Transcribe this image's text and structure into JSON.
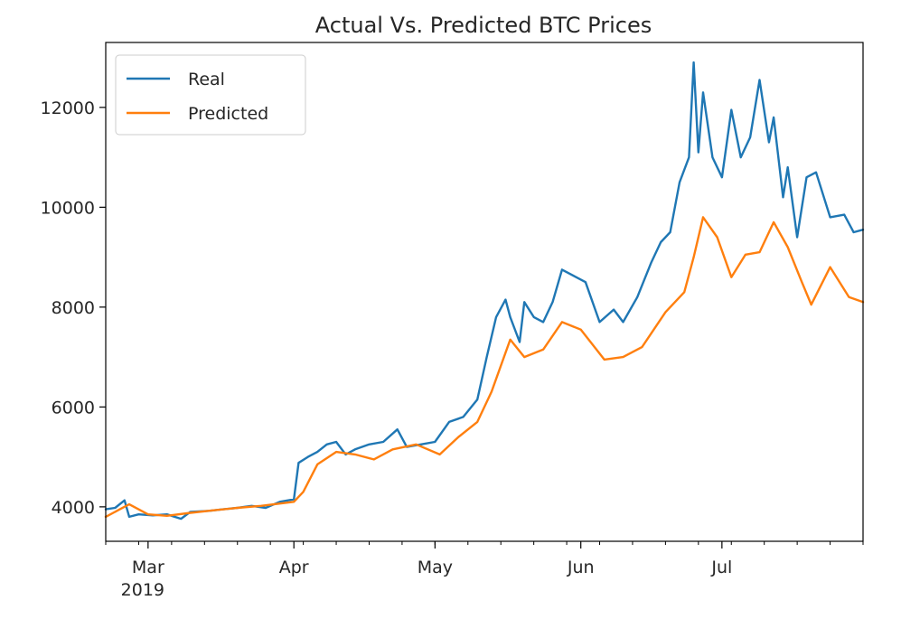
{
  "chart_data": {
    "type": "line",
    "title": "Actual Vs. Predicted BTC Prices",
    "xlabel": "",
    "ylabel": "",
    "x_range": [
      "2019-02-20",
      "2019-07-31"
    ],
    "ylim": [
      3310,
      13300
    ],
    "yticks": [
      4000,
      6000,
      8000,
      10000,
      12000
    ],
    "xticks": [
      {
        "date": "2019-03-01",
        "label": "Mar",
        "sublabel": "2019"
      },
      {
        "date": "2019-04-01",
        "label": "Apr"
      },
      {
        "date": "2019-05-01",
        "label": "May"
      },
      {
        "date": "2019-06-01",
        "label": "Jun"
      },
      {
        "date": "2019-07-01",
        "label": "Jul"
      }
    ],
    "grid": false,
    "legend_position": "upper-left",
    "series": [
      {
        "name": "Real",
        "color": "#1f77b4",
        "points": [
          [
            "2019-02-20",
            3950
          ],
          [
            "2019-02-22",
            3980
          ],
          [
            "2019-02-24",
            4130
          ],
          [
            "2019-02-25",
            3800
          ],
          [
            "2019-02-27",
            3850
          ],
          [
            "2019-03-02",
            3830
          ],
          [
            "2019-03-05",
            3850
          ],
          [
            "2019-03-08",
            3760
          ],
          [
            "2019-03-10",
            3900
          ],
          [
            "2019-03-14",
            3920
          ],
          [
            "2019-03-17",
            3950
          ],
          [
            "2019-03-20",
            3980
          ],
          [
            "2019-03-23",
            4020
          ],
          [
            "2019-03-26",
            3980
          ],
          [
            "2019-03-29",
            4100
          ],
          [
            "2019-04-01",
            4150
          ],
          [
            "2019-04-02",
            4880
          ],
          [
            "2019-04-04",
            5000
          ],
          [
            "2019-04-06",
            5100
          ],
          [
            "2019-04-08",
            5250
          ],
          [
            "2019-04-10",
            5300
          ],
          [
            "2019-04-12",
            5050
          ],
          [
            "2019-04-14",
            5150
          ],
          [
            "2019-04-17",
            5250
          ],
          [
            "2019-04-20",
            5300
          ],
          [
            "2019-04-23",
            5550
          ],
          [
            "2019-04-25",
            5200
          ],
          [
            "2019-04-28",
            5250
          ],
          [
            "2019-05-01",
            5300
          ],
          [
            "2019-05-04",
            5700
          ],
          [
            "2019-05-07",
            5800
          ],
          [
            "2019-05-10",
            6150
          ],
          [
            "2019-05-12",
            7000
          ],
          [
            "2019-05-14",
            7800
          ],
          [
            "2019-05-16",
            8150
          ],
          [
            "2019-05-17",
            7800
          ],
          [
            "2019-05-19",
            7300
          ],
          [
            "2019-05-20",
            8100
          ],
          [
            "2019-05-22",
            7800
          ],
          [
            "2019-05-24",
            7700
          ],
          [
            "2019-05-26",
            8100
          ],
          [
            "2019-05-28",
            8750
          ],
          [
            "2019-05-31",
            8600
          ],
          [
            "2019-06-02",
            8500
          ],
          [
            "2019-06-05",
            7700
          ],
          [
            "2019-06-08",
            7950
          ],
          [
            "2019-06-10",
            7700
          ],
          [
            "2019-06-13",
            8200
          ],
          [
            "2019-06-16",
            8900
          ],
          [
            "2019-06-18",
            9300
          ],
          [
            "2019-06-20",
            9500
          ],
          [
            "2019-06-22",
            10500
          ],
          [
            "2019-06-24",
            11000
          ],
          [
            "2019-06-25",
            12900
          ],
          [
            "2019-06-26",
            11100
          ],
          [
            "2019-06-27",
            12300
          ],
          [
            "2019-06-29",
            11000
          ],
          [
            "2019-07-01",
            10600
          ],
          [
            "2019-07-03",
            11950
          ],
          [
            "2019-07-05",
            11000
          ],
          [
            "2019-07-07",
            11400
          ],
          [
            "2019-07-09",
            12550
          ],
          [
            "2019-07-11",
            11300
          ],
          [
            "2019-07-12",
            11800
          ],
          [
            "2019-07-14",
            10200
          ],
          [
            "2019-07-15",
            10800
          ],
          [
            "2019-07-17",
            9400
          ],
          [
            "2019-07-19",
            10600
          ],
          [
            "2019-07-21",
            10700
          ],
          [
            "2019-07-24",
            9800
          ],
          [
            "2019-07-27",
            9850
          ],
          [
            "2019-07-29",
            9500
          ],
          [
            "2019-07-31",
            9550
          ]
        ]
      },
      {
        "name": "Predicted",
        "color": "#ff7f0e",
        "points": [
          [
            "2019-02-20",
            3800
          ],
          [
            "2019-02-23",
            3950
          ],
          [
            "2019-02-25",
            4050
          ],
          [
            "2019-03-01",
            3850
          ],
          [
            "2019-03-05",
            3820
          ],
          [
            "2019-03-10",
            3880
          ],
          [
            "2019-03-15",
            3930
          ],
          [
            "2019-03-20",
            3980
          ],
          [
            "2019-03-25",
            4020
          ],
          [
            "2019-04-01",
            4100
          ],
          [
            "2019-04-03",
            4300
          ],
          [
            "2019-04-06",
            4850
          ],
          [
            "2019-04-10",
            5100
          ],
          [
            "2019-04-14",
            5050
          ],
          [
            "2019-04-18",
            4950
          ],
          [
            "2019-04-22",
            5150
          ],
          [
            "2019-04-27",
            5250
          ],
          [
            "2019-05-02",
            5050
          ],
          [
            "2019-05-06",
            5400
          ],
          [
            "2019-05-10",
            5700
          ],
          [
            "2019-05-13",
            6300
          ],
          [
            "2019-05-17",
            7350
          ],
          [
            "2019-05-20",
            7000
          ],
          [
            "2019-05-24",
            7150
          ],
          [
            "2019-05-28",
            7700
          ],
          [
            "2019-06-01",
            7550
          ],
          [
            "2019-06-06",
            6950
          ],
          [
            "2019-06-10",
            7000
          ],
          [
            "2019-06-14",
            7200
          ],
          [
            "2019-06-19",
            7900
          ],
          [
            "2019-06-23",
            8300
          ],
          [
            "2019-06-25",
            9000
          ],
          [
            "2019-06-27",
            9800
          ],
          [
            "2019-06-30",
            9400
          ],
          [
            "2019-07-03",
            8600
          ],
          [
            "2019-07-06",
            9050
          ],
          [
            "2019-07-09",
            9100
          ],
          [
            "2019-07-12",
            9700
          ],
          [
            "2019-07-15",
            9200
          ],
          [
            "2019-07-18",
            8500
          ],
          [
            "2019-07-20",
            8050
          ],
          [
            "2019-07-24",
            8800
          ],
          [
            "2019-07-28",
            8200
          ],
          [
            "2019-07-31",
            8100
          ]
        ]
      }
    ]
  }
}
